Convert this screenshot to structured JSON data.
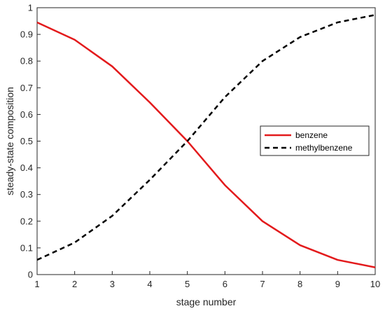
{
  "chart_data": {
    "type": "line",
    "xlabel": "stage number",
    "ylabel": "steady-state composition",
    "xlim": [
      1,
      10
    ],
    "ylim": [
      0,
      1
    ],
    "x_ticks": [
      "1",
      "2",
      "3",
      "4",
      "5",
      "6",
      "7",
      "8",
      "9",
      "10"
    ],
    "y_ticks": [
      "0",
      "0.1",
      "0.2",
      "0.3",
      "0.4",
      "0.5",
      "0.6",
      "0.7",
      "0.8",
      "0.9",
      "1"
    ],
    "x": [
      1,
      2,
      3,
      4,
      5,
      6,
      7,
      8,
      9,
      10
    ],
    "series": [
      {
        "name": "benzene",
        "values": [
          0.945,
          0.88,
          0.78,
          0.645,
          0.5,
          0.335,
          0.2,
          0.11,
          0.055,
          0.027
        ],
        "color": "#e31a1c",
        "style": "solid"
      },
      {
        "name": "methylbenzene",
        "values": [
          0.055,
          0.12,
          0.22,
          0.355,
          0.5,
          0.665,
          0.8,
          0.89,
          0.945,
          0.973
        ],
        "color": "#000000",
        "style": "dashed"
      }
    ],
    "grid": false,
    "legend_position": "right"
  }
}
